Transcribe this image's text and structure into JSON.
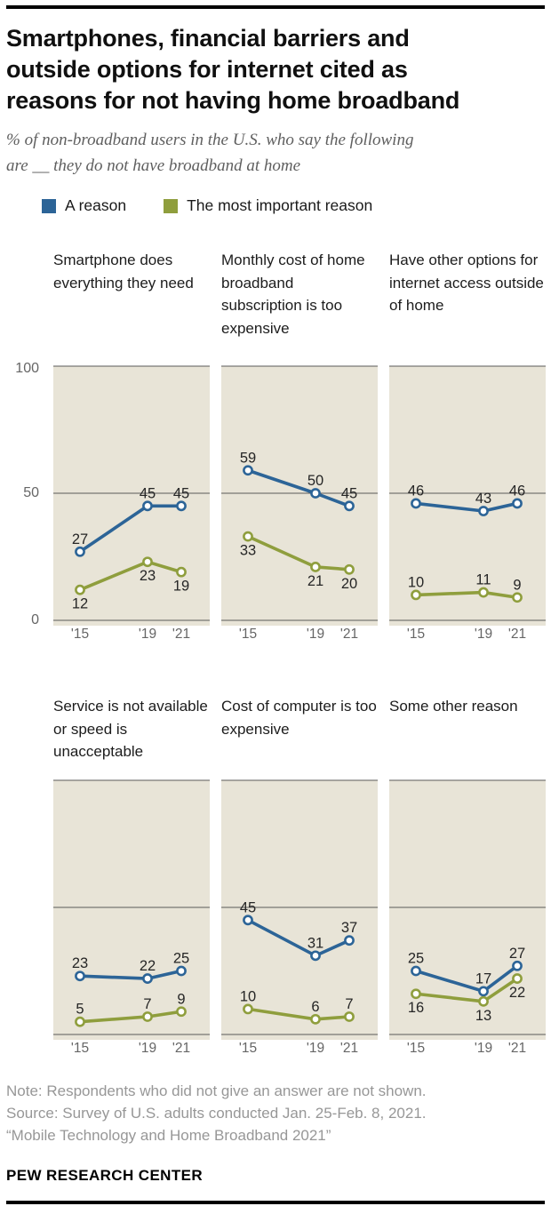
{
  "header": {
    "title": "Smartphones, financial barriers and outside options for internet cited as reasons for not having home broadband",
    "subtitle": "% of non-broadband users in the U.S. who say the following are __ they do not have broadband at home"
  },
  "legend": [
    {
      "label": "A reason",
      "color": "#2c6497"
    },
    {
      "label": "The most important reason",
      "color": "#8f9e3d"
    }
  ],
  "palette": {
    "panel_bg": "#e8e4d7",
    "gridline": "#5a5a5a",
    "value_label": "#262626",
    "tick": "#666666",
    "marker_fill": "#ffffff",
    "rule": "#000000"
  },
  "chart_data": {
    "type": "line",
    "years": [
      2015,
      2019,
      2021
    ],
    "x_labels": [
      "'15",
      "'19",
      "'21"
    ],
    "ylim": [
      0,
      100
    ],
    "yticks": [
      0,
      50,
      100
    ],
    "grid": "horizontal lines at 0, 50 and 100",
    "legend_position": "top",
    "panels": [
      {
        "title": "Smartphone does everything they need",
        "series": [
          {
            "name": "A reason",
            "values": [
              27,
              45,
              45
            ],
            "label_side": "above"
          },
          {
            "name": "The most important reason",
            "values": [
              12,
              23,
              19
            ],
            "label_side": "below"
          }
        ]
      },
      {
        "title": "Monthly cost of home broadband subscription is too expensive",
        "series": [
          {
            "name": "A reason",
            "values": [
              59,
              50,
              45
            ],
            "label_side": "above"
          },
          {
            "name": "The most important reason",
            "values": [
              33,
              21,
              20
            ],
            "label_side": "below"
          }
        ]
      },
      {
        "title": "Have other options for internet access outside of home",
        "series": [
          {
            "name": "A reason",
            "values": [
              46,
              43,
              46
            ],
            "label_side": "above"
          },
          {
            "name": "The most important reason",
            "values": [
              10,
              11,
              9
            ],
            "label_side": "above"
          }
        ]
      },
      {
        "title": "Service is not available or speed is unacceptable",
        "series": [
          {
            "name": "A reason",
            "values": [
              23,
              22,
              25
            ],
            "label_side": "above"
          },
          {
            "name": "The most important reason",
            "values": [
              5,
              7,
              9
            ],
            "label_side": "above"
          }
        ]
      },
      {
        "title": "Cost of computer is too expensive",
        "series": [
          {
            "name": "A reason",
            "values": [
              45,
              31,
              37
            ],
            "label_side": "above"
          },
          {
            "name": "The most important reason",
            "values": [
              10,
              6,
              7
            ],
            "label_side": "above"
          }
        ]
      },
      {
        "title": "Some other reason",
        "series": [
          {
            "name": "A reason",
            "values": [
              25,
              17,
              27
            ],
            "label_side": "above"
          },
          {
            "name": "The most important reason",
            "values": [
              16,
              13,
              22
            ],
            "label_side": "below"
          }
        ]
      }
    ]
  },
  "footer": {
    "note": "Note: Respondents who did not give an answer are not shown.",
    "source": "Source: Survey of U.S. adults conducted Jan. 25-Feb. 8, 2021.",
    "report": "“Mobile Technology and Home Broadband 2021”",
    "brand": "PEW RESEARCH CENTER"
  }
}
